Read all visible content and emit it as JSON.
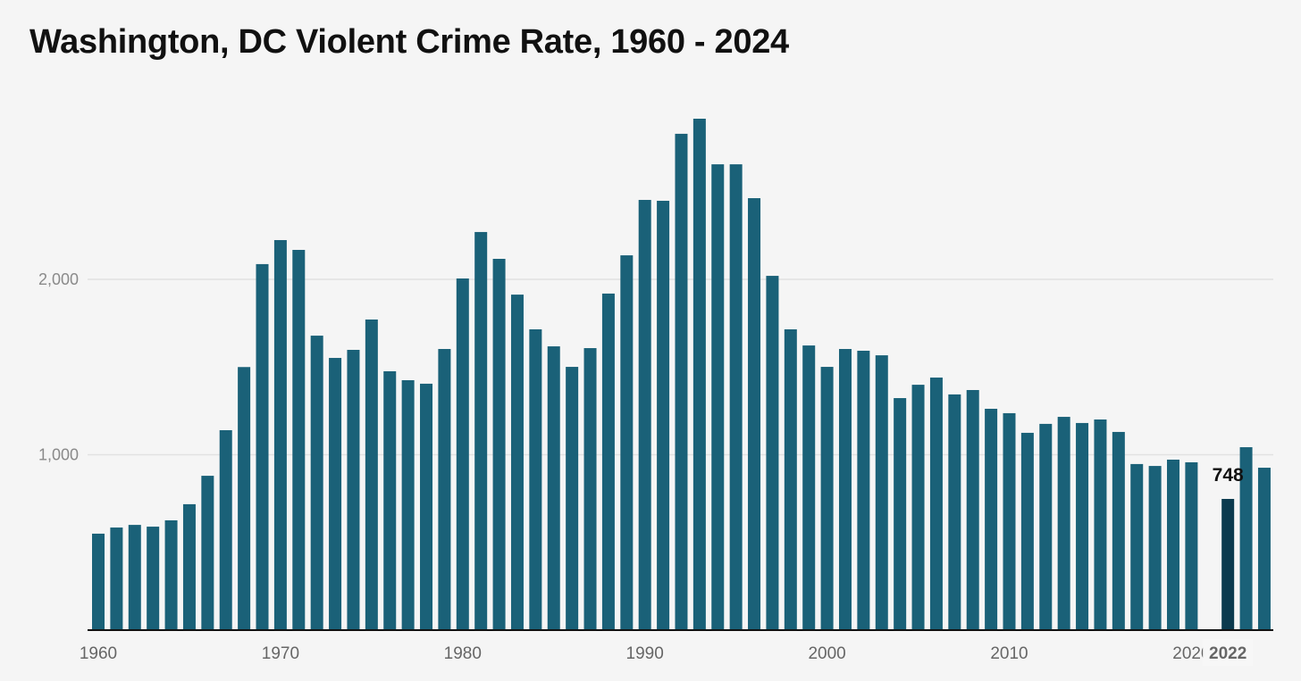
{
  "chart_data": {
    "type": "bar",
    "title": "Washington, DC Violent Crime Rate, 1960 - 2024",
    "xlabel": "",
    "ylabel": "",
    "ylim": [
      0,
      3000
    ],
    "grid": true,
    "y_ticks": [
      {
        "value": 1000,
        "label": "1,000"
      },
      {
        "value": 2000,
        "label": "2,000"
      }
    ],
    "x_ticks": [
      "1960",
      "1970",
      "1980",
      "1990",
      "2000",
      "2010",
      "2020"
    ],
    "highlight": {
      "category": "2022",
      "value": 748,
      "label": "748",
      "x_label": "2022"
    },
    "colors": {
      "bar": "#1a6178",
      "highlight": "#0b3a4e",
      "grid": "#e2e2e2",
      "axis": "#111111"
    },
    "categories": [
      "1960",
      "1961",
      "1962",
      "1963",
      "1964",
      "1965",
      "1966",
      "1967",
      "1968",
      "1969",
      "1970",
      "1971",
      "1972",
      "1973",
      "1974",
      "1975",
      "1976",
      "1977",
      "1978",
      "1979",
      "1980",
      "1981",
      "1982",
      "1983",
      "1984",
      "1985",
      "1986",
      "1987",
      "1988",
      "1989",
      "1990",
      "1991",
      "1992",
      "1993",
      "1994",
      "1995",
      "1996",
      "1997",
      "1998",
      "1999",
      "2000",
      "2001",
      "2002",
      "2003",
      "2004",
      "2005",
      "2006",
      "2007",
      "2008",
      "2009",
      "2010",
      "2011",
      "2012",
      "2013",
      "2014",
      "2015",
      "2016",
      "2017",
      "2018",
      "2019",
      "2020",
      "2021",
      "2022",
      "2023",
      "2024"
    ],
    "values": [
      550,
      585,
      600,
      590,
      626,
      718,
      880,
      1140,
      1500,
      2087,
      2224,
      2168,
      1679,
      1552,
      1598,
      1771,
      1476,
      1425,
      1405,
      1603,
      2005,
      2270,
      2117,
      1913,
      1715,
      1618,
      1501,
      1608,
      1919,
      2137,
      2453,
      2448,
      2830,
      2916,
      2656,
      2656,
      2463,
      2020,
      1715,
      1623,
      1501,
      1603,
      1593,
      1567,
      1323,
      1399,
      1440,
      1344,
      1369,
      1262,
      1237,
      1125,
      1176,
      1216,
      1181,
      1201,
      1130,
      947,
      936,
      972,
      957,
      null,
      748,
      1043,
      926
    ]
  }
}
